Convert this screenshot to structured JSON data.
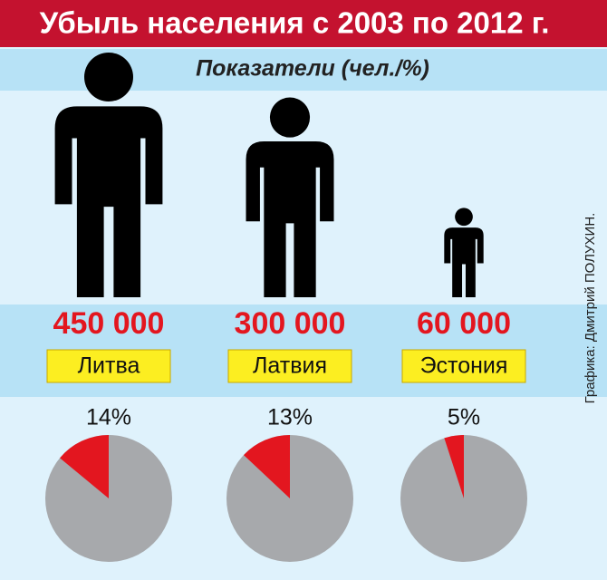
{
  "chart_data": [
    {
      "type": "pictograph",
      "title": "Убыль населения с 2003 по 2012 г.",
      "subtitle": "Показатели (чел./%)",
      "categories": [
        "Литва",
        "Латвия",
        "Эстония"
      ],
      "values": [
        450000,
        300000,
        60000
      ],
      "value_labels": [
        "450 000",
        "300 000",
        "60 000"
      ],
      "color": "#000000",
      "label_color": "#e3161f"
    },
    {
      "type": "pie",
      "values": [
        14,
        13,
        5
      ],
      "value_labels": [
        "14%",
        "13%",
        "5%"
      ],
      "color": "#e3161f",
      "rest_color": "#a7a9ac"
    }
  ],
  "credit": "Графика: Дмитрий ПОЛУХИН."
}
